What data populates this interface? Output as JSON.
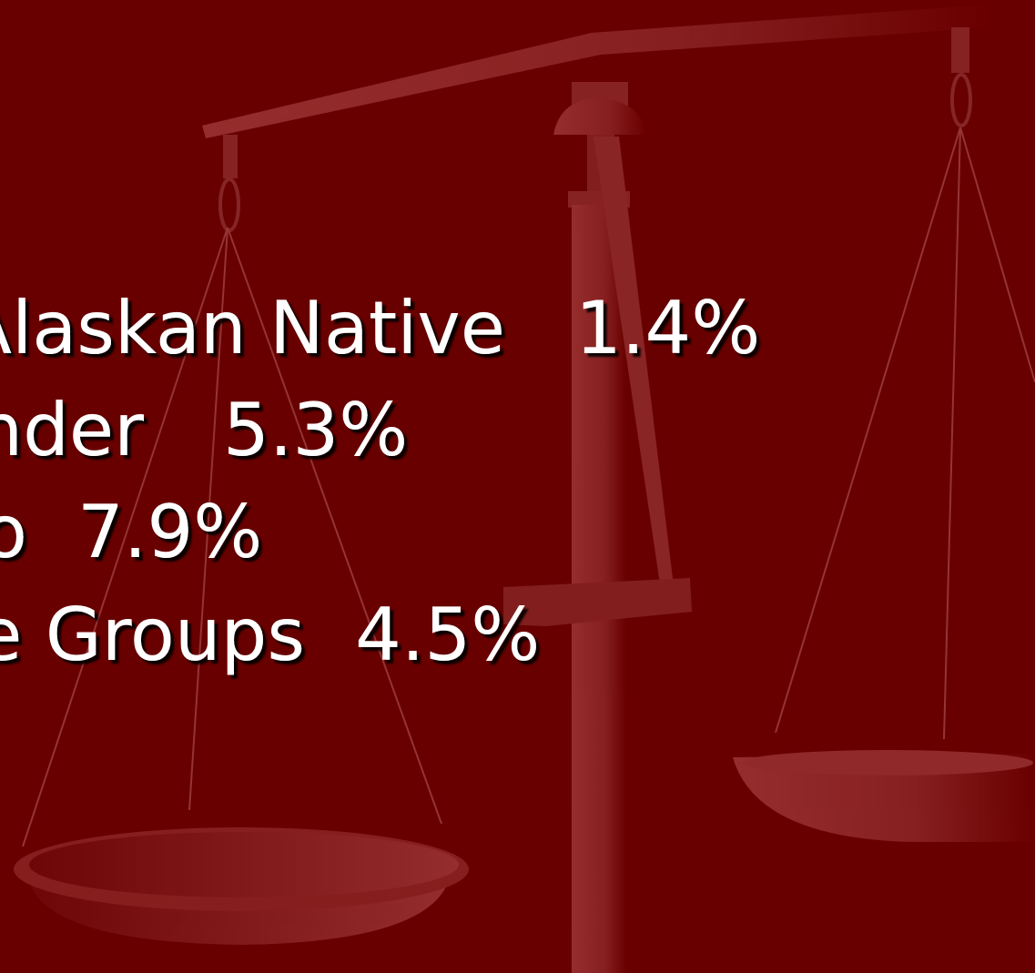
{
  "lines": [
    {
      "label": "/Alaskan Native",
      "value": "1.4%"
    },
    {
      "label": "nder",
      "value": "5.3%"
    },
    {
      "label": "o",
      "value": "7.9%"
    },
    {
      "label": "e Groups",
      "value": "4.5%"
    }
  ]
}
